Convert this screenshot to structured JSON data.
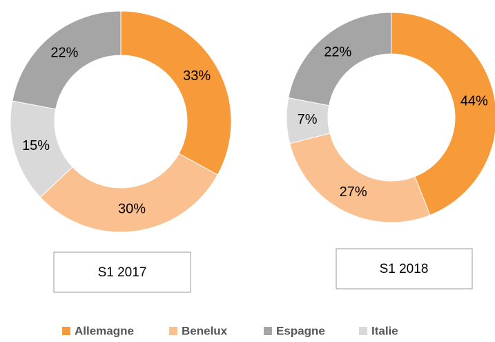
{
  "chart_data": [
    {
      "type": "pie",
      "title": "S1 2017",
      "categories": [
        "Allemagne",
        "Benelux",
        "Espagne",
        "Italie"
      ],
      "values": [
        33,
        30,
        22,
        15
      ],
      "value_labels": [
        "33%",
        "30%",
        "22%",
        "15%"
      ],
      "colors": [
        "#f79a3a",
        "#fac08f",
        "#a5a5a5",
        "#d9d9d9"
      ]
    },
    {
      "type": "pie",
      "title": "S1 2018",
      "categories": [
        "Allemagne",
        "Benelux",
        "Espagne",
        "Italie"
      ],
      "values": [
        44,
        27,
        22,
        7
      ],
      "value_labels": [
        "44%",
        "27%",
        "22%",
        "7%"
      ],
      "colors": [
        "#f79a3a",
        "#fac08f",
        "#a5a5a5",
        "#d9d9d9"
      ]
    }
  ]
}
